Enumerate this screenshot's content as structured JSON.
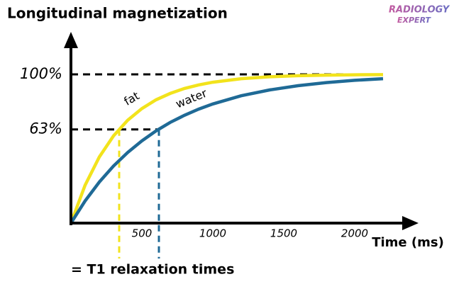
{
  "logo": [
    "RADIOLOGY",
    "EXPERT"
  ],
  "chart_data": {
    "type": "line",
    "title": "Longitudinal magnetization",
    "x_label": "Time (ms)",
    "footnote": "= T1 relaxation times",
    "x": [
      0,
      100,
      200,
      300,
      400,
      500,
      600,
      700,
      800,
      900,
      1000,
      1200,
      1400,
      1600,
      1800,
      2000,
      2200
    ],
    "series": [
      {
        "name": "fat",
        "color": "#f2e31c",
        "t1": 340,
        "values": [
          0,
          25.5,
          44.5,
          58.6,
          69.2,
          77.0,
          82.9,
          87.2,
          90.5,
          92.9,
          94.7,
          97.1,
          98.4,
          99.1,
          99.5,
          99.7,
          99.8
        ]
      },
      {
        "name": "water",
        "color": "#1f6a96",
        "t1": 620,
        "values": [
          0,
          14.9,
          27.6,
          38.4,
          47.5,
          55.3,
          62.0,
          67.7,
          72.5,
          76.6,
          80.1,
          85.6,
          89.5,
          92.4,
          94.5,
          96.0,
          97.1
        ]
      }
    ],
    "xlim": [
      0,
      2300
    ],
    "ylim": [
      0,
      100
    ],
    "xticks": [
      500,
      1000,
      1500,
      2000
    ],
    "yticks": [
      {
        "value": 100,
        "label": "100%"
      },
      {
        "value": 63,
        "label": "63%"
      }
    ]
  }
}
